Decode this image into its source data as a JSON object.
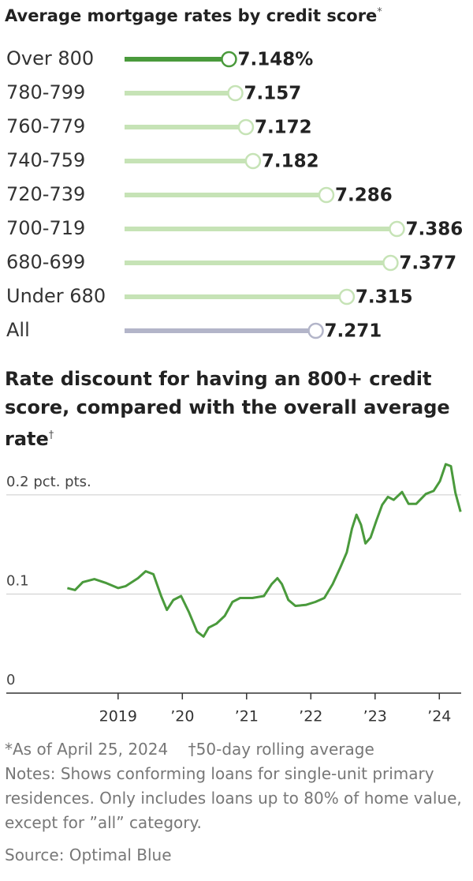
{
  "chart_data": [
    {
      "type": "lollipop",
      "title": "Average mortgage rates by credit score",
      "title_mark": "*",
      "categories": [
        "Over 800",
        "780-799",
        "760-779",
        "740-759",
        "720-739",
        "700-719",
        "680-699",
        "Under 680",
        "All"
      ],
      "values": [
        7.148,
        7.157,
        7.172,
        7.182,
        7.286,
        7.386,
        7.377,
        7.315,
        7.271
      ],
      "value_labels": [
        "7.148%",
        "7.157",
        "7.172",
        "7.182",
        "7.286",
        "7.386",
        "7.377",
        "7.315",
        "7.271"
      ],
      "colors": [
        "#4a9a3c",
        "#c6e3b6",
        "#c6e3b6",
        "#c6e3b6",
        "#c6e3b6",
        "#c6e3b6",
        "#c6e3b6",
        "#c6e3b6",
        "#b3b5c9"
      ],
      "xlim": [
        7.0,
        7.4
      ]
    },
    {
      "type": "line",
      "title": "Rate discount for having an 800+ credit score, compared with the overall average rate",
      "title_mark": "†",
      "x": [
        2018.21,
        2018.33,
        2018.45,
        2018.63,
        2018.82,
        2019.0,
        2019.12,
        2019.31,
        2019.43,
        2019.55,
        2019.67,
        2019.76,
        2019.86,
        2019.98,
        2020.1,
        2020.23,
        2020.33,
        2020.41,
        2020.53,
        2020.66,
        2020.78,
        2020.9,
        2021.09,
        2021.27,
        2021.39,
        2021.48,
        2021.55,
        2021.65,
        2021.76,
        2021.92,
        2022.07,
        2022.21,
        2022.34,
        2022.46,
        2022.56,
        2022.64,
        2022.71,
        2022.78,
        2022.85,
        2022.93,
        2023.02,
        2023.11,
        2023.2,
        2023.29,
        2023.42,
        2023.52,
        2023.64,
        2023.79,
        2023.91,
        2024.01,
        2024.1,
        2024.18,
        2024.25,
        2024.33
      ],
      "values": [
        0.106,
        0.104,
        0.112,
        0.115,
        0.111,
        0.106,
        0.108,
        0.116,
        0.123,
        0.12,
        0.098,
        0.084,
        0.094,
        0.098,
        0.082,
        0.062,
        0.057,
        0.066,
        0.07,
        0.078,
        0.092,
        0.096,
        0.096,
        0.098,
        0.11,
        0.116,
        0.11,
        0.094,
        0.088,
        0.089,
        0.092,
        0.096,
        0.11,
        0.127,
        0.142,
        0.166,
        0.18,
        0.17,
        0.151,
        0.157,
        0.174,
        0.19,
        0.198,
        0.195,
        0.203,
        0.191,
        0.191,
        0.201,
        0.204,
        0.214,
        0.231,
        0.229,
        0.202,
        0.183
      ],
      "color": "#4a9a3c",
      "xlim": [
        2017.26,
        2024.34
      ],
      "xticks": [
        2019,
        {
          "value": 2020,
          "label": "’20"
        },
        {
          "value": 2021,
          "label": "’21"
        },
        {
          "value": 2022,
          "label": "’22"
        },
        {
          "value": 2023,
          "label": "’23"
        },
        {
          "value": 2024,
          "label": "’24"
        }
      ],
      "ylim": [
        0,
        0.235
      ],
      "yticks": [
        0,
        0.1,
        {
          "value": 0.2,
          "label": "0.2 pct. pts."
        }
      ],
      "grid": true
    }
  ],
  "footnotes": [
    "*As of April 25, 2024",
    "†50-day rolling average"
  ],
  "notes": "Notes: Shows conforming loans for single-unit primary residences. Only includes loans up to 80% of home value, except for ”all” category.",
  "source": "Source: Optimal Blue"
}
